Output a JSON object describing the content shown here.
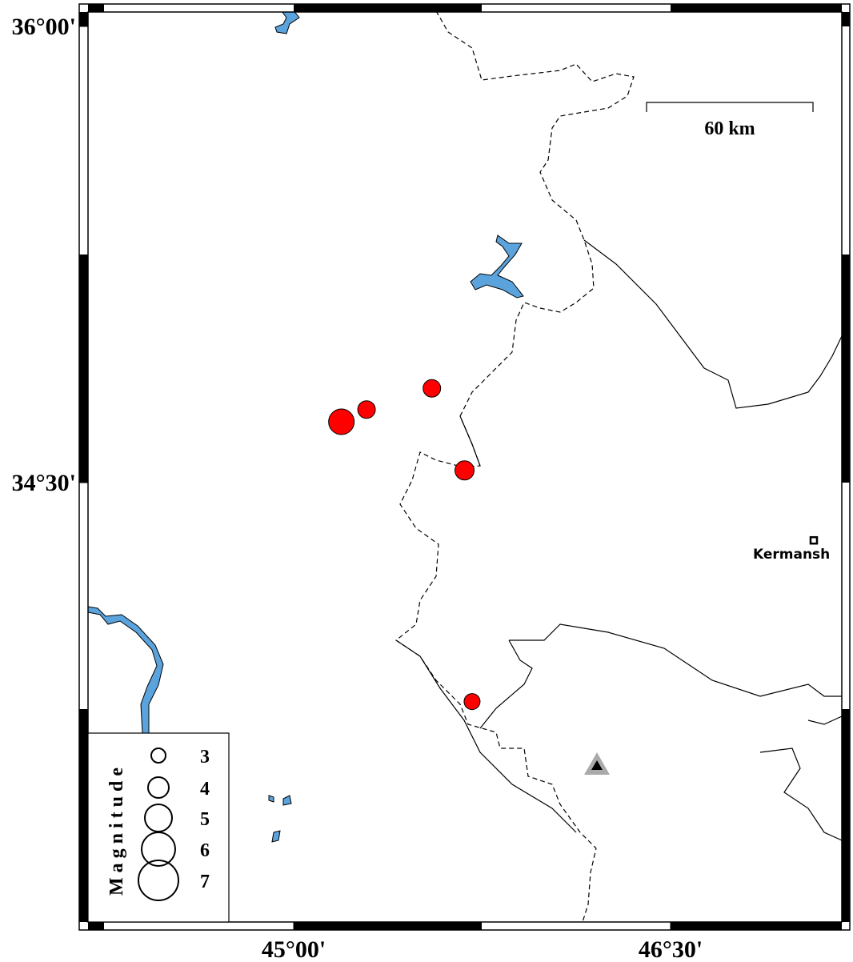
{
  "map": {
    "ticks": {
      "lat": [
        {
          "value": 36,
          "label": "36°00'"
        },
        {
          "value": 34.5,
          "label": "34°30'"
        }
      ],
      "lon": [
        {
          "value": 45,
          "label": "45°00'"
        },
        {
          "value": 46.5,
          "label": "46°30'"
        }
      ]
    },
    "scale_bar": "60 km",
    "city": {
      "name": "Kermansh",
      "lon": 47.07,
      "lat": 34.31
    },
    "events": [
      {
        "lon": 45.19,
        "lat": 34.7,
        "magnitude": 4.75
      },
      {
        "lon": 45.29,
        "lat": 34.74,
        "magnitude": 3.5
      },
      {
        "lon": 45.55,
        "lat": 34.81,
        "magnitude": 3.5
      },
      {
        "lon": 45.68,
        "lat": 34.54,
        "magnitude": 3.75
      },
      {
        "lon": 45.71,
        "lat": 33.78,
        "magnitude": 3.25
      }
    ],
    "legend": {
      "title": "Magnitude",
      "magnitudes": [
        3,
        4,
        5,
        6,
        7
      ]
    }
  }
}
